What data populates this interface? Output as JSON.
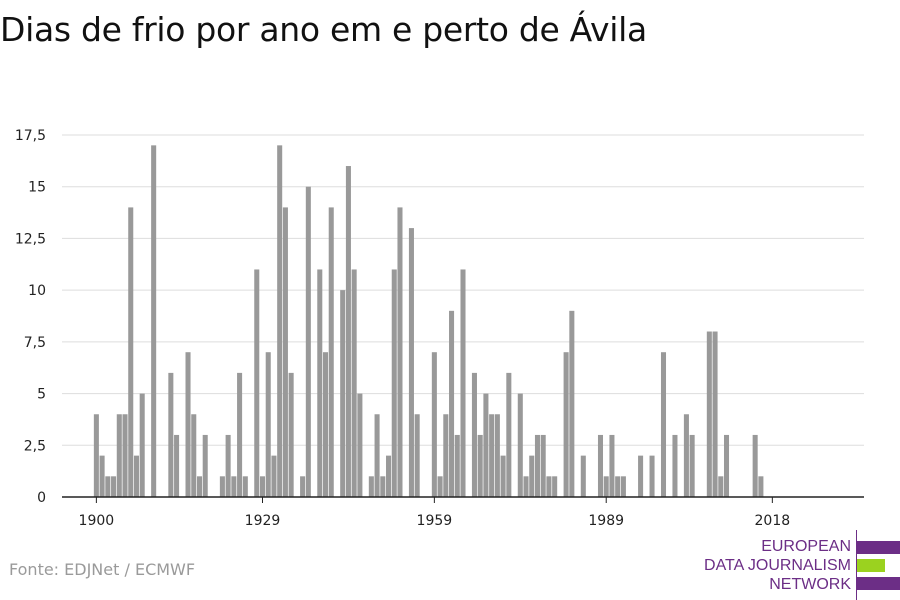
{
  "title": "Dias de frio por ano em e perto de Ávila",
  "source": "Fonte: EDJNet / ECMWF",
  "logo": {
    "lines": [
      "EUROPEAN",
      "DATA JOURNALISM",
      "NETWORK"
    ],
    "colors": {
      "purple": "#6c2e86",
      "green": "#9bd21f"
    }
  },
  "chart_data": {
    "type": "bar",
    "title": "Dias de frio por ano em e perto de Ávila",
    "xlabel": "",
    "ylabel": "",
    "x_ticks": [
      1900,
      1929,
      1959,
      1989,
      2018
    ],
    "y_ticks": [
      "0",
      "2,5",
      "5",
      "7,5",
      "10",
      "12,5",
      "15",
      "17,5"
    ],
    "y_tick_values": [
      0,
      2.5,
      5,
      7.5,
      10,
      12.5,
      15,
      17.5
    ],
    "ylim": [
      0,
      17.5
    ],
    "xlim": [
      1894,
      2034
    ],
    "grid": true,
    "bar_color": "#999999",
    "x": [
      1900,
      1901,
      1902,
      1903,
      1904,
      1905,
      1906,
      1907,
      1908,
      1909,
      1910,
      1911,
      1912,
      1913,
      1914,
      1915,
      1916,
      1917,
      1918,
      1919,
      1920,
      1921,
      1922,
      1923,
      1924,
      1925,
      1926,
      1927,
      1928,
      1929,
      1930,
      1931,
      1932,
      1933,
      1934,
      1935,
      1936,
      1937,
      1938,
      1939,
      1940,
      1941,
      1942,
      1943,
      1944,
      1945,
      1946,
      1947,
      1948,
      1949,
      1950,
      1951,
      1952,
      1953,
      1954,
      1955,
      1956,
      1957,
      1958,
      1959,
      1960,
      1961,
      1962,
      1963,
      1964,
      1965,
      1966,
      1967,
      1968,
      1969,
      1970,
      1971,
      1972,
      1973,
      1974,
      1975,
      1976,
      1977,
      1978,
      1979,
      1980,
      1981,
      1982,
      1983,
      1984,
      1985,
      1986,
      1987,
      1988,
      1989,
      1990,
      1991,
      1992,
      1993,
      1994,
      1995,
      1996,
      1997,
      1998,
      1999,
      2000,
      2001,
      2002,
      2003,
      2004,
      2005,
      2006,
      2007,
      2008,
      2009,
      2010,
      2011,
      2012,
      2013,
      2014,
      2015,
      2016,
      2017,
      2018,
      2019,
      2020
    ],
    "values": [
      4,
      2,
      1,
      1,
      4,
      4,
      14,
      2,
      5,
      0,
      17,
      0,
      0,
      6,
      3,
      0,
      7,
      4,
      1,
      3,
      0,
      0,
      1,
      3,
      1,
      6,
      1,
      0,
      11,
      1,
      7,
      2,
      17,
      14,
      6,
      0,
      1,
      15,
      0,
      11,
      7,
      14,
      0,
      10,
      16,
      11,
      5,
      0,
      1,
      4,
      1,
      2,
      11,
      14,
      0,
      13,
      4,
      0,
      0,
      7,
      1,
      4,
      9,
      3,
      11,
      0,
      6,
      3,
      5,
      4,
      4,
      2,
      6,
      0,
      5,
      1,
      2,
      3,
      3,
      1,
      1,
      0,
      7,
      9,
      0,
      2,
      0,
      0,
      3,
      1,
      3,
      1,
      1,
      0,
      0,
      2,
      0,
      2,
      0,
      7,
      0,
      3,
      0,
      4,
      3,
      0,
      0,
      8,
      8,
      1,
      3,
      0,
      0,
      0,
      0,
      3,
      1,
      0,
      0,
      0,
      0
    ]
  }
}
